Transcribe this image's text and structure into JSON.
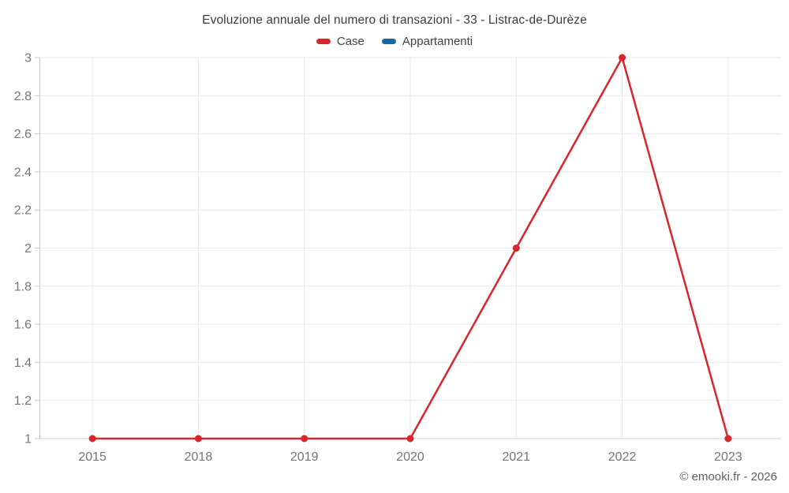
{
  "title": "Evoluzione annuale del numero di transazioni - 33 - Listrac-de-Durèze",
  "footer": "© emooki.fr - 2026",
  "colors": {
    "case_red": "#d8262c",
    "appartamenti_blue": "#17699e",
    "grid": "#e9e9e9",
    "axis_line": "#c9c9c9",
    "baseline": "#cfcfcf",
    "axis_label": "#757575",
    "title_text": "#3c3c3c",
    "legend_text": "#424242",
    "footer_text": "#5f5f5f"
  },
  "legend": {
    "items": [
      {
        "label": "Case",
        "color": "#d8262c"
      },
      {
        "label": "Appartamenti",
        "color": "#17699e"
      }
    ]
  },
  "chart_data": {
    "type": "line",
    "title": "Evoluzione annuale del numero di transazioni - 33 - Listrac-de-Durèze",
    "categories": [
      "2015",
      "2018",
      "2019",
      "2020",
      "2021",
      "2022",
      "2023"
    ],
    "series": [
      {
        "name": "Case",
        "color": "#d8262c",
        "values": [
          1,
          1,
          1,
          1,
          2,
          3,
          1
        ]
      },
      {
        "name": "Appartamenti",
        "color": "#17699e",
        "values": []
      }
    ],
    "xlabel": "",
    "ylabel": "",
    "ylim": [
      1,
      3
    ],
    "ytick_step": 0.2,
    "grid": true,
    "legend_position": "top"
  }
}
